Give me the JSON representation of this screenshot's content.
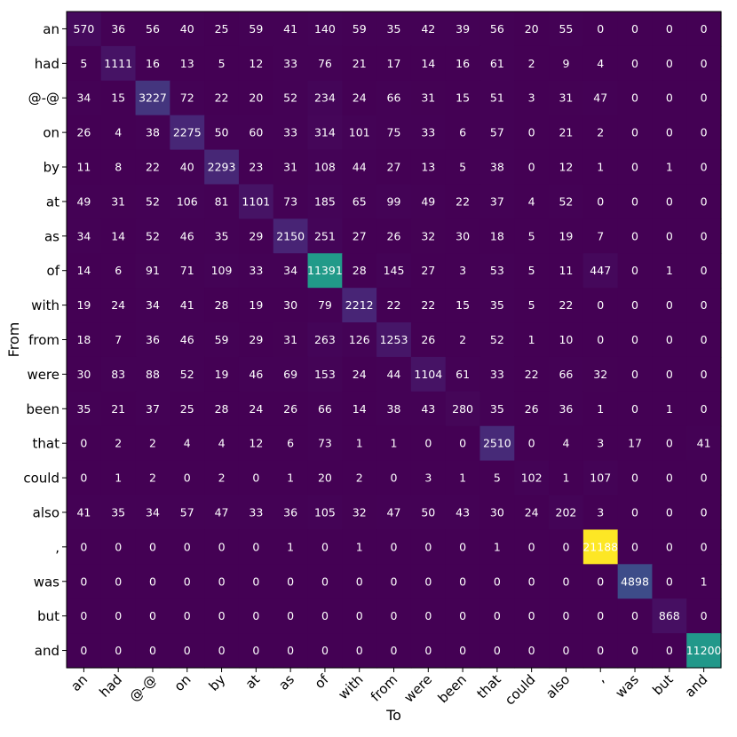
{
  "chart_data": {
    "type": "heatmap",
    "title": "",
    "xlabel": "To",
    "ylabel": "From",
    "row_labels": [
      "an",
      "had",
      "@-@",
      "on",
      "by",
      "at",
      "as",
      "of",
      "with",
      "from",
      "were",
      "been",
      "that",
      "could",
      "also",
      ",",
      "was",
      "but",
      "and"
    ],
    "col_labels": [
      "an",
      "had",
      "@-@",
      "on",
      "by",
      "at",
      "as",
      "of",
      "with",
      "from",
      "were",
      "been",
      "that",
      "could",
      "also",
      ",",
      "was",
      "but",
      "and"
    ],
    "value_range": [
      0,
      21188
    ],
    "colormap": "viridis",
    "grid": false,
    "values": [
      [
        570,
        36,
        56,
        40,
        25,
        59,
        41,
        140,
        59,
        35,
        42,
        39,
        56,
        20,
        55,
        0,
        0,
        0,
        0
      ],
      [
        5,
        1111,
        16,
        13,
        5,
        12,
        33,
        76,
        21,
        17,
        14,
        16,
        61,
        2,
        9,
        4,
        0,
        0,
        0
      ],
      [
        34,
        15,
        3227,
        72,
        22,
        20,
        52,
        234,
        24,
        66,
        31,
        15,
        51,
        3,
        31,
        47,
        0,
        0,
        0
      ],
      [
        26,
        4,
        38,
        2275,
        50,
        60,
        33,
        314,
        101,
        75,
        33,
        6,
        57,
        0,
        21,
        2,
        0,
        0,
        0
      ],
      [
        11,
        8,
        22,
        40,
        2293,
        23,
        31,
        108,
        44,
        27,
        13,
        5,
        38,
        0,
        12,
        1,
        0,
        1,
        0
      ],
      [
        49,
        31,
        52,
        106,
        81,
        1101,
        73,
        185,
        65,
        99,
        49,
        22,
        37,
        4,
        52,
        0,
        0,
        0,
        0
      ],
      [
        34,
        14,
        52,
        46,
        35,
        29,
        2150,
        251,
        27,
        26,
        32,
        30,
        18,
        5,
        19,
        7,
        0,
        0,
        0
      ],
      [
        14,
        6,
        91,
        71,
        109,
        33,
        34,
        11391,
        28,
        145,
        27,
        3,
        53,
        5,
        11,
        447,
        0,
        1,
        0
      ],
      [
        19,
        24,
        34,
        41,
        28,
        19,
        30,
        79,
        2212,
        22,
        22,
        15,
        35,
        5,
        22,
        0,
        0,
        0,
        0
      ],
      [
        18,
        7,
        36,
        46,
        59,
        29,
        31,
        263,
        126,
        1253,
        26,
        2,
        52,
        1,
        10,
        0,
        0,
        0,
        0
      ],
      [
        30,
        83,
        88,
        52,
        19,
        46,
        69,
        153,
        24,
        44,
        1104,
        61,
        33,
        22,
        66,
        32,
        0,
        0,
        0
      ],
      [
        35,
        21,
        37,
        25,
        28,
        24,
        26,
        66,
        14,
        38,
        43,
        280,
        35,
        26,
        36,
        1,
        0,
        1,
        0
      ],
      [
        0,
        2,
        2,
        4,
        4,
        12,
        6,
        73,
        1,
        1,
        0,
        0,
        2510,
        0,
        4,
        3,
        17,
        0,
        41
      ],
      [
        0,
        1,
        2,
        0,
        2,
        0,
        1,
        20,
        2,
        0,
        3,
        1,
        5,
        102,
        1,
        107,
        0,
        0,
        0
      ],
      [
        41,
        35,
        34,
        57,
        47,
        33,
        36,
        105,
        32,
        47,
        50,
        43,
        30,
        24,
        202,
        3,
        0,
        0,
        0
      ],
      [
        0,
        0,
        0,
        0,
        0,
        0,
        1,
        0,
        1,
        0,
        0,
        0,
        1,
        0,
        0,
        21188,
        0,
        0,
        0
      ],
      [
        0,
        0,
        0,
        0,
        0,
        0,
        0,
        0,
        0,
        0,
        0,
        0,
        0,
        0,
        0,
        0,
        4898,
        0,
        1
      ],
      [
        0,
        0,
        0,
        0,
        0,
        0,
        0,
        0,
        0,
        0,
        0,
        0,
        0,
        0,
        0,
        0,
        0,
        868,
        0
      ],
      [
        0,
        0,
        0,
        0,
        0,
        0,
        0,
        0,
        0,
        0,
        0,
        0,
        0,
        0,
        0,
        0,
        0,
        0,
        11200
      ]
    ]
  }
}
